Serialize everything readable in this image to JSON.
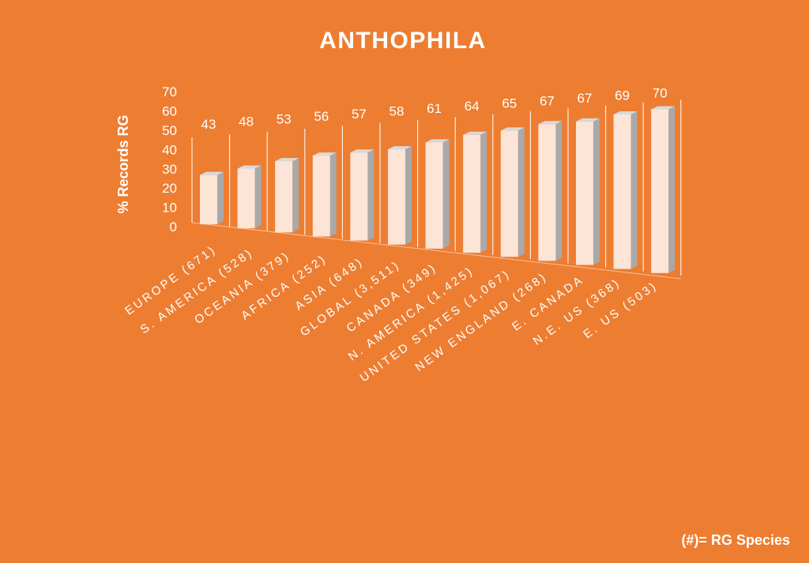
{
  "chart_data": {
    "type": "bar",
    "title": "ANTHOPHILA",
    "ylabel": "% Records RG",
    "xlabel": "",
    "ylim": [
      0,
      70
    ],
    "yticks": [
      0,
      10,
      20,
      30,
      40,
      50,
      60,
      70
    ],
    "categories": [
      "EUROPE (671)",
      "S. AMERICA (528)",
      "OCEANIA (379)",
      "AFRICA (252)",
      "ASIA (648)",
      "GLOBAL (3,511)",
      "CANADA (349)",
      "N. AMERICA (1,425)",
      "UNITED STATES (1,067)",
      "NEW ENGLAND (268)",
      "E. CANADA",
      "N.E. US (368)",
      "E. US (503)"
    ],
    "values": [
      43,
      48,
      53,
      56,
      57,
      58,
      61,
      64,
      65,
      67,
      67,
      69,
      70
    ],
    "data_labels": [
      "43",
      "48",
      "53",
      "56",
      "57",
      "58",
      "61",
      "64",
      "65",
      "67",
      "67",
      "69",
      "70"
    ],
    "style": "3d-perspective",
    "grid": false,
    "legend": "none",
    "colors": {
      "background": "#ED7D31",
      "bar_front": "#FCE4D6",
      "bar_side": "#A9A9A9",
      "bar_top": "#D9D9D9",
      "text": "#FFFFFF"
    }
  },
  "footnote": "(#)= RG Species"
}
